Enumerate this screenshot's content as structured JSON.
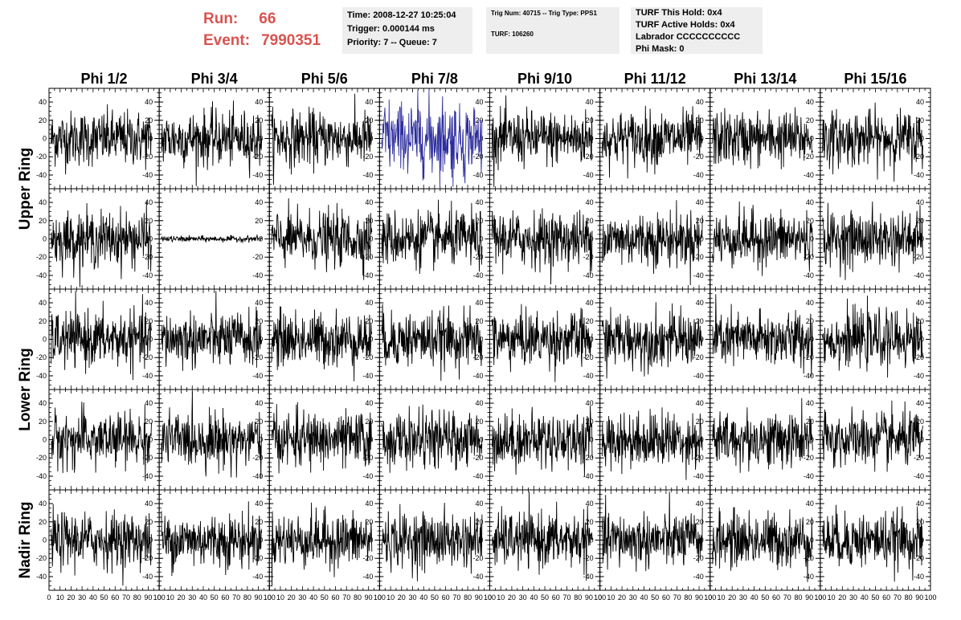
{
  "header": {
    "run_label": "Run:",
    "run_value": "66",
    "event_label": "Event:",
    "event_value": "7990351",
    "time": "Time: 2008-12-27 10:25:04",
    "trigger": "Trigger: 0.000144 ms",
    "priority": "Priority: 7 -- Queue: 7",
    "trig_num": "Trig Num: 40715 -- Trig Type: PPS1",
    "turf": "TURF: 106260",
    "turf_this_hold": "TURF This Hold: 0x4",
    "turf_active_holds": "TURF Active Holds: 0x4",
    "labrador": "Labrador CCCCCCCCCC",
    "phi_mask": "Phi Mask: 0"
  },
  "colors": {
    "trace": "#000000",
    "highlight_trace": "#2e2e9e",
    "run_text": "#d9534f",
    "info_bg": "#eeeeee"
  },
  "chart_data": {
    "type": "line",
    "columns": [
      "Phi 1/2",
      "Phi 3/4",
      "Phi 5/6",
      "Phi 7/8",
      "Phi 9/10",
      "Phi 11/12",
      "Phi 13/14",
      "Phi 15/16"
    ],
    "rows": [
      "Upper Ring",
      "Upper Ring",
      "Lower Ring",
      "Lower Ring",
      "Nadir Ring"
    ],
    "row_labels": [
      "Upper Ring",
      "Lower Ring",
      "Nadir Ring"
    ],
    "y_ticks": [
      -40,
      -20,
      0,
      20,
      40
    ],
    "ylim": [
      -55,
      55
    ],
    "x_tick_labels": [
      "0",
      "10",
      "20",
      "30",
      "40",
      "50",
      "60",
      "70",
      "80",
      "90",
      "100"
    ],
    "xlim": [
      0,
      100
    ],
    "highlight_panel": {
      "row": 0,
      "col": 3
    },
    "quiet_panel": {
      "row": 1,
      "col": 1
    },
    "samples_per_trace": 260,
    "typical_amplitude": 15
  }
}
